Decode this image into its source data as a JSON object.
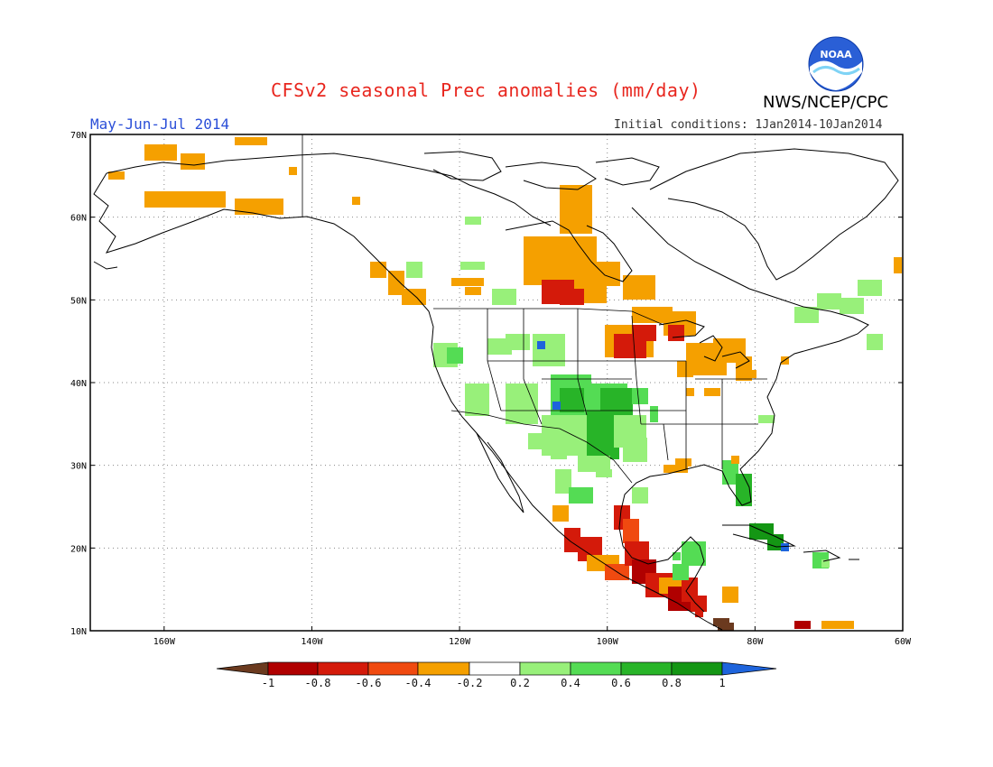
{
  "header": {
    "title": "CFSv2 seasonal Prec anomalies (mm/day)",
    "period": "May-Jun-Jul 2014",
    "initial_conditions": "Initial conditions: 1Jan2014-10Jan2014",
    "organization": "NWS/NCEP/CPC",
    "logo_text": "NOAA"
  },
  "map": {
    "lat_labels": [
      "70N",
      "60N",
      "50N",
      "40N",
      "30N",
      "20N",
      "10N"
    ],
    "lon_labels": [
      "160W",
      "140W",
      "120W",
      "100W",
      "80W",
      "60W"
    ]
  },
  "legend": {
    "labels": [
      "-1",
      "-0.8",
      "-0.6",
      "-0.4",
      "-0.2",
      "0.2",
      "0.4",
      "0.6",
      "0.8",
      "1"
    ],
    "colors": [
      "#6b3a1f",
      "#b00000",
      "#d41a0a",
      "#f04a10",
      "#f5a000",
      "#ffffff",
      "#98f07a",
      "#54dc54",
      "#28b428",
      "#149614",
      "#1e64dc"
    ]
  },
  "colors": {
    "title": "#e8261e",
    "period": "#2b4fd8"
  }
}
